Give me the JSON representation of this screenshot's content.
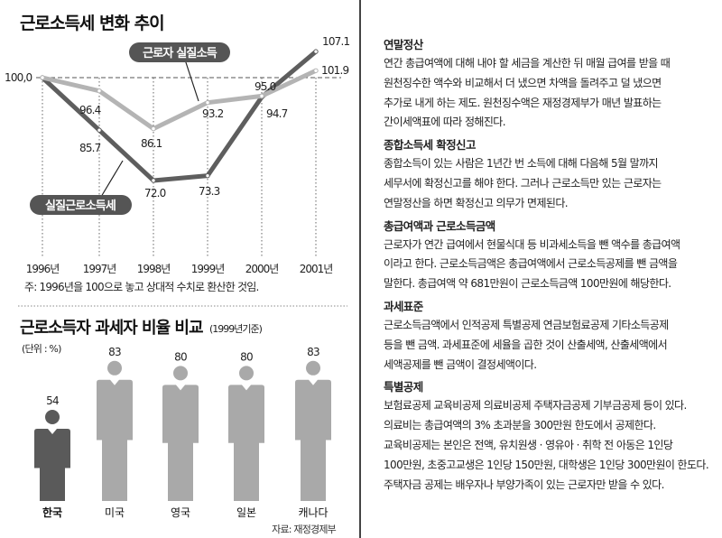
{
  "chart_data": [
    {
      "type": "line",
      "title": "근로소득세 변화 추이",
      "categories": [
        "1996년",
        "1997년",
        "1998년",
        "1999년",
        "2000년",
        "2001년"
      ],
      "series": [
        {
          "name": "근로자 실질소득",
          "values": [
            100.0,
            96.4,
            86.1,
            93.2,
            95.0,
            101.9
          ],
          "color": "#b4b4b4"
        },
        {
          "name": "실질근로소득세",
          "values": [
            100.0,
            85.7,
            72.0,
            73.3,
            94.7,
            107.1
          ],
          "color": "#5e5e5e"
        }
      ],
      "value_labels": [
        [
          "100,0",
          "96.4",
          "86.1",
          "93.2",
          "95.0",
          "101.9"
        ],
        [
          "",
          "85.7",
          "72.0",
          "73.3",
          "94.7",
          "107.1"
        ]
      ],
      "reference_line": 100,
      "ylim": [
        65,
        110
      ],
      "note": "주: 1996년을 100으로 놓고 상대적 수치로 환산한 것임."
    },
    {
      "type": "bar",
      "title": "근로소득자 과세자 비율 비교",
      "subtitle": "(1999년기준)",
      "unit": "(단위 : %)",
      "categories": [
        "한국",
        "미국",
        "영국",
        "일본",
        "캐나다"
      ],
      "values": [
        54,
        83,
        80,
        80,
        83
      ],
      "colors": [
        "#5a5a5a",
        "#a9a9a9",
        "#a9a9a9",
        "#a9a9a9",
        "#a9a9a9"
      ],
      "source": "자료: 재정경제부"
    }
  ],
  "glossary": [
    {
      "term": "연말정산",
      "lines": [
        "연간 총급여액에 대해 내야 할 세금을 계산한 뒤 매월 급여를 받을 때",
        "원천징수한 액수와 비교해서 더 냈으면 차액을 돌려주고 덜 냈으면",
        "추가로 내게 하는 제도. 원천징수액은 재정경제부가 매년 발표하는",
        "간이세액표에 따라 정해진다."
      ]
    },
    {
      "term": "종합소득세 확정신고",
      "lines": [
        "종합소득이 있는 사람은 1년간 번 소득에 대해 다음해 5월 말까지",
        "세무서에 확정신고를 해야 한다. 그러나 근로소득만 있는 근로자는",
        "연말정산을 하면 확정신고 의무가 면제된다."
      ]
    },
    {
      "term": "총급여액과 근로소득금액",
      "lines": [
        "근로자가 연간 급여에서 현물식대 등 비과세소득을 뺀 액수를 총급여액",
        "이라고 한다. 근로소득금액은 총급여액에서 근로소득공제를 뺀 금액을",
        "말한다. 총급여액 약 681만원이 근로소득금액 100만원에 해당한다."
      ]
    },
    {
      "term": "과세표준",
      "lines": [
        "근로소득금액에서 인적공제 특별공제 연금보험료공제 기타소득공제",
        "등을 뺀 금액. 과세표준에 세율을 곱한 것이 산출세액, 산출세액에서",
        "세액공제를 뺀 금액이 결정세액이다."
      ]
    },
    {
      "term": "특별공제",
      "lines": [
        "보험료공제 교육비공제 의료비공제 주택자금공제 기부금공제 등이 있다.",
        "의료비는 총급여액의 3% 초과분을 300만원 한도에서 공제한다.",
        "교육비공제는 본인은 전액, 유치원생 · 영유아 · 취학 전 아동은 1인당",
        "100만원, 초중고교생은 1인당 150만원, 대학생은 1인당 300만원이 한도다.",
        "주택자금 공제는 배우자나 부양가족이 있는 근로자만 받을 수 있다."
      ]
    }
  ]
}
